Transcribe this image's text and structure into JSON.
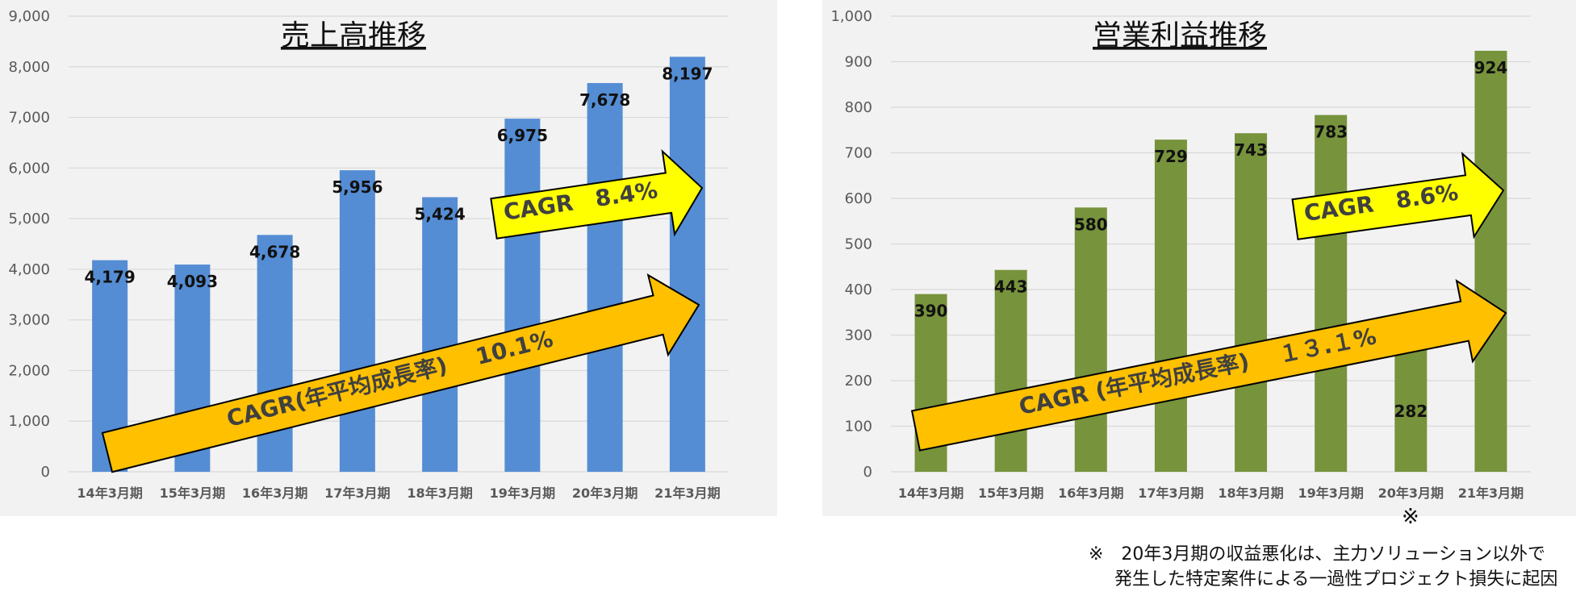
{
  "colors": {
    "sales_bar": "#548dd4",
    "profit_bar": "#77933c",
    "arrow_yellow": "#ffff00",
    "arrow_orange": "#ffc000",
    "grid": "#d9d9d9"
  },
  "chart_data": [
    {
      "type": "bar",
      "title": "売上高推移",
      "categories": [
        "14年3月期",
        "15年3月期",
        "16年3月期",
        "17年3月期",
        "18年3月期",
        "19年3月期",
        "20年3月期",
        "21年3月期"
      ],
      "values": [
        4179,
        4093,
        4678,
        5956,
        5424,
        6975,
        7678,
        8197
      ],
      "value_labels": [
        "4,179",
        "4,093",
        "4,678",
        "5,956",
        "5,424",
        "6,975",
        "7,678",
        "8,197"
      ],
      "ylim": [
        0,
        9000
      ],
      "y_ticks": [
        "0",
        "1,000",
        "2,000",
        "3,000",
        "4,000",
        "5,000",
        "6,000",
        "7,000",
        "8,000",
        "9,000"
      ],
      "grid": true,
      "annotations": [
        {
          "text": "CAGR(年平均成長率)　 10.1%",
          "style": "orange-arrow"
        },
        {
          "text": "CAGR　8.4%",
          "style": "yellow-arrow"
        }
      ]
    },
    {
      "type": "bar",
      "title": "営業利益推移",
      "categories": [
        "14年3月期",
        "15年3月期",
        "16年3月期",
        "17年3月期",
        "18年3月期",
        "19年3月期",
        "20年3月期",
        "21年3月期"
      ],
      "values": [
        390,
        443,
        580,
        729,
        743,
        783,
        282,
        924
      ],
      "value_labels": [
        "390",
        "443",
        "580",
        "729",
        "743",
        "783",
        "282",
        "924"
      ],
      "ylim": [
        0,
        1000
      ],
      "y_ticks": [
        "0",
        "100",
        "200",
        "300",
        "400",
        "500",
        "600",
        "700",
        "800",
        "900",
        "1,000"
      ],
      "grid": true,
      "annotations": [
        {
          "text": "CAGR (年平均成長率)　 １３.１%",
          "style": "orange-arrow"
        },
        {
          "text": "CAGR　8.6%",
          "style": "yellow-arrow"
        }
      ],
      "footnote_mark": "※"
    }
  ],
  "footnote": {
    "line1": "※　20年3月期の収益悪化は、主力ソリューション以外で",
    "line2": "発生した特定案件による一過性プロジェクト損失に起因"
  }
}
